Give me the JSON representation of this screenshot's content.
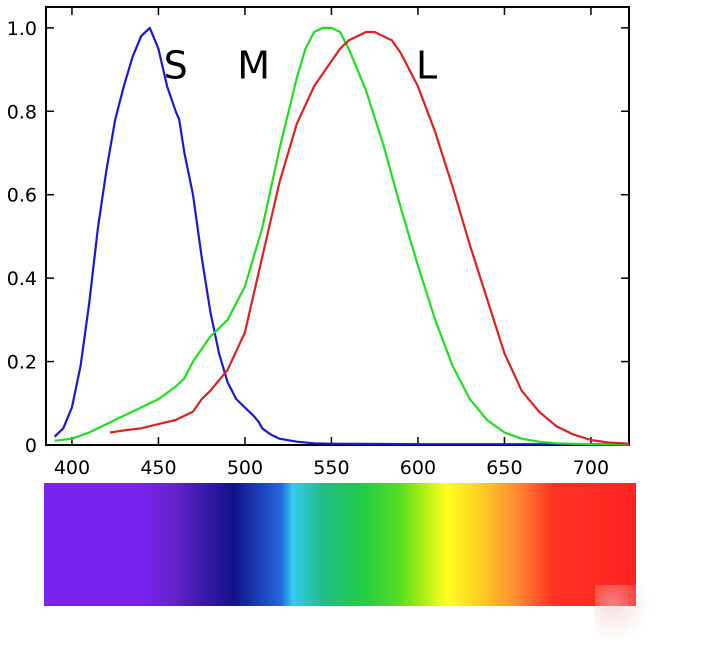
{
  "chart_data": {
    "type": "line",
    "title": "",
    "xlabel": "",
    "ylabel": "",
    "xlim": [
      385,
      722
    ],
    "ylim": [
      0,
      1.05
    ],
    "x_ticks": [
      400,
      450,
      500,
      550,
      600,
      650,
      700
    ],
    "y_ticks": [
      0,
      0.2,
      0.4,
      0.6,
      0.8,
      1.0
    ],
    "x_tick_labels": [
      "400",
      "450",
      "500",
      "550",
      "600",
      "650",
      "700"
    ],
    "y_tick_labels": [
      "0",
      "0.2",
      "0.4",
      "0.6",
      "0.8",
      "1.0"
    ],
    "grid": false,
    "series": [
      {
        "name": "S",
        "color": "#1a1acc",
        "label_at": [
          460,
          0.91
        ],
        "x": [
          390,
          395,
          400,
          405,
          410,
          415,
          420,
          425,
          430,
          435,
          440,
          445,
          450,
          455,
          460,
          462,
          465,
          470,
          475,
          480,
          485,
          490,
          495,
          500,
          505,
          508,
          510,
          515,
          520,
          530,
          540,
          550,
          600,
          650,
          700,
          722
        ],
        "y": [
          0.02,
          0.04,
          0.09,
          0.19,
          0.34,
          0.52,
          0.66,
          0.78,
          0.86,
          0.93,
          0.98,
          1.0,
          0.95,
          0.86,
          0.8,
          0.78,
          0.7,
          0.6,
          0.45,
          0.32,
          0.22,
          0.15,
          0.11,
          0.09,
          0.07,
          0.055,
          0.04,
          0.025,
          0.015,
          0.008,
          0.004,
          0.003,
          0.002,
          0.002,
          0.002,
          0.002
        ]
      },
      {
        "name": "M",
        "color": "#22dd22",
        "label_at": [
          505,
          0.91
        ],
        "x": [
          390,
          400,
          410,
          420,
          430,
          440,
          450,
          460,
          465,
          470,
          480,
          490,
          500,
          510,
          520,
          530,
          535,
          540,
          545,
          550,
          555,
          560,
          565,
          570,
          580,
          590,
          600,
          610,
          620,
          630,
          640,
          650,
          660,
          670,
          680,
          700,
          722
        ],
        "y": [
          0.01,
          0.015,
          0.03,
          0.05,
          0.07,
          0.09,
          0.11,
          0.14,
          0.16,
          0.2,
          0.26,
          0.3,
          0.38,
          0.52,
          0.71,
          0.88,
          0.95,
          0.99,
          1.0,
          1.0,
          0.99,
          0.95,
          0.9,
          0.85,
          0.72,
          0.57,
          0.43,
          0.3,
          0.19,
          0.11,
          0.06,
          0.03,
          0.015,
          0.008,
          0.004,
          0.002,
          0.001
        ]
      },
      {
        "name": "L",
        "color": "#dd2222",
        "label_at": [
          605,
          0.91
        ],
        "x": [
          422,
          430,
          440,
          450,
          460,
          470,
          475,
          480,
          490,
          500,
          510,
          520,
          530,
          540,
          550,
          555,
          560,
          565,
          570,
          575,
          580,
          585,
          590,
          600,
          610,
          620,
          630,
          640,
          650,
          660,
          670,
          680,
          690,
          700,
          710,
          722
        ],
        "y": [
          0.03,
          0.035,
          0.04,
          0.05,
          0.06,
          0.08,
          0.11,
          0.13,
          0.18,
          0.27,
          0.45,
          0.63,
          0.77,
          0.86,
          0.92,
          0.95,
          0.97,
          0.98,
          0.99,
          0.99,
          0.98,
          0.97,
          0.94,
          0.86,
          0.75,
          0.62,
          0.48,
          0.35,
          0.22,
          0.13,
          0.08,
          0.045,
          0.025,
          0.012,
          0.006,
          0.003
        ]
      }
    ],
    "color_band": {
      "description_colors": [
        "#7a22ee",
        "#7a22ee",
        "#6622cc",
        "#11118a",
        "#2266dd",
        "#33ccee",
        "#22bb88",
        "#22cc44",
        "#55dd22",
        "#aaee11",
        "#ffff22",
        "#ffcc22",
        "#ff8833",
        "#ff3322",
        "#ff2222"
      ],
      "stops": [
        0,
        0.16,
        0.22,
        0.32,
        0.4,
        0.42,
        0.47,
        0.54,
        0.6,
        0.64,
        0.68,
        0.74,
        0.8,
        0.86,
        1
      ]
    }
  }
}
